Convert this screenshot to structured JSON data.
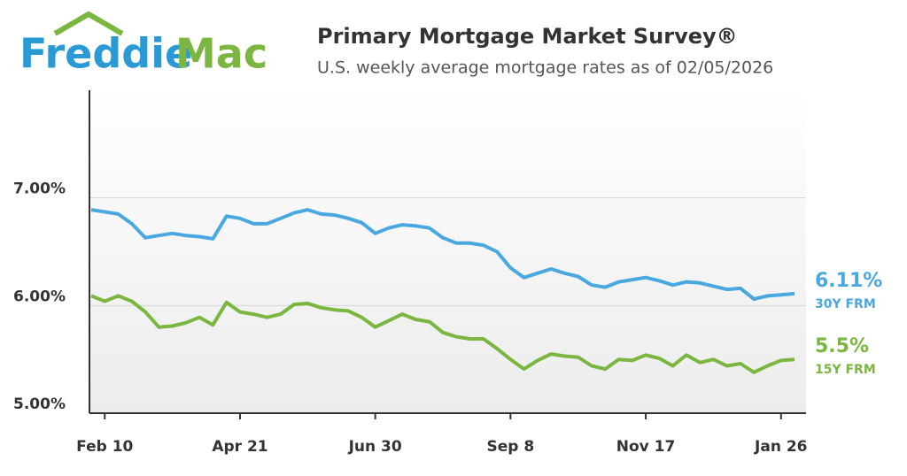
{
  "brand": {
    "first": "Freddie",
    "second": "Mac"
  },
  "chart_data": {
    "type": "line",
    "title": "Primary Mortgage Market Survey®",
    "subtitle": "U.S. weekly average mortgage rates as of 02/05/2026",
    "categories": [
      null,
      "Feb 10",
      null,
      null,
      null,
      null,
      null,
      null,
      null,
      null,
      null,
      "Apr 21",
      null,
      null,
      null,
      null,
      null,
      null,
      null,
      null,
      null,
      "Jun 30",
      null,
      null,
      null,
      null,
      null,
      null,
      null,
      null,
      null,
      "Sep 8",
      null,
      null,
      null,
      null,
      null,
      null,
      null,
      null,
      null,
      "Nov 17",
      null,
      null,
      null,
      null,
      null,
      null,
      null,
      null,
      null,
      "Jan 26",
      null
    ],
    "ylim": [
      5,
      8
    ],
    "yticks": [
      {
        "value": 5,
        "label": "5.00%"
      },
      {
        "value": 6,
        "label": "6.00%"
      },
      {
        "value": 7,
        "label": "7.00%"
      }
    ],
    "grid": true,
    "series": [
      {
        "name": "30Y FRM",
        "color": "#4aa8e0",
        "value_labels": [
          null,
          null,
          null,
          null,
          null,
          null,
          null,
          null,
          null,
          null,
          null,
          null,
          null,
          null,
          null,
          null,
          null,
          null,
          null,
          null,
          null,
          null,
          null,
          null,
          null,
          null,
          null,
          null,
          null,
          null,
          null,
          null,
          null,
          null,
          null,
          null,
          null,
          null,
          null,
          null,
          null,
          null,
          null,
          null,
          null,
          null,
          null,
          null,
          null,
          null,
          null,
          null,
          "6.11%"
        ],
        "values": [
          6.89,
          6.87,
          6.85,
          6.76,
          6.63,
          6.65,
          6.67,
          6.65,
          6.64,
          6.62,
          6.83,
          6.81,
          6.76,
          6.76,
          6.81,
          6.86,
          6.89,
          6.85,
          6.84,
          6.81,
          6.77,
          6.67,
          6.72,
          6.75,
          6.74,
          6.72,
          6.63,
          6.58,
          6.58,
          6.56,
          6.5,
          6.35,
          6.26,
          6.3,
          6.34,
          6.3,
          6.27,
          6.19,
          6.17,
          6.22,
          6.24,
          6.26,
          6.23,
          6.19,
          6.22,
          6.21,
          6.18,
          6.15,
          6.16,
          6.06,
          6.09,
          6.1,
          6.11
        ]
      },
      {
        "name": "15Y FRM",
        "color": "#7ab640",
        "value_labels": [
          null,
          null,
          null,
          null,
          null,
          null,
          null,
          null,
          null,
          null,
          null,
          null,
          null,
          null,
          null,
          null,
          null,
          null,
          null,
          null,
          null,
          null,
          null,
          null,
          null,
          null,
          null,
          null,
          null,
          null,
          null,
          null,
          null,
          null,
          null,
          null,
          null,
          null,
          null,
          null,
          null,
          null,
          null,
          null,
          null,
          null,
          null,
          null,
          null,
          null,
          null,
          null,
          "5.5%"
        ],
        "values": [
          6.09,
          6.04,
          6.09,
          6.04,
          5.94,
          5.8,
          5.81,
          5.84,
          5.89,
          5.82,
          6.03,
          5.94,
          5.92,
          5.89,
          5.92,
          6.01,
          6.02,
          5.98,
          5.96,
          5.95,
          5.89,
          5.8,
          5.86,
          5.92,
          5.87,
          5.85,
          5.75,
          5.71,
          5.69,
          5.69,
          5.6,
          5.5,
          5.41,
          5.49,
          5.55,
          5.53,
          5.52,
          5.44,
          5.41,
          5.5,
          5.49,
          5.54,
          5.51,
          5.44,
          5.54,
          5.47,
          5.5,
          5.44,
          5.46,
          5.38,
          5.44,
          5.49,
          5.5
        ]
      }
    ]
  }
}
